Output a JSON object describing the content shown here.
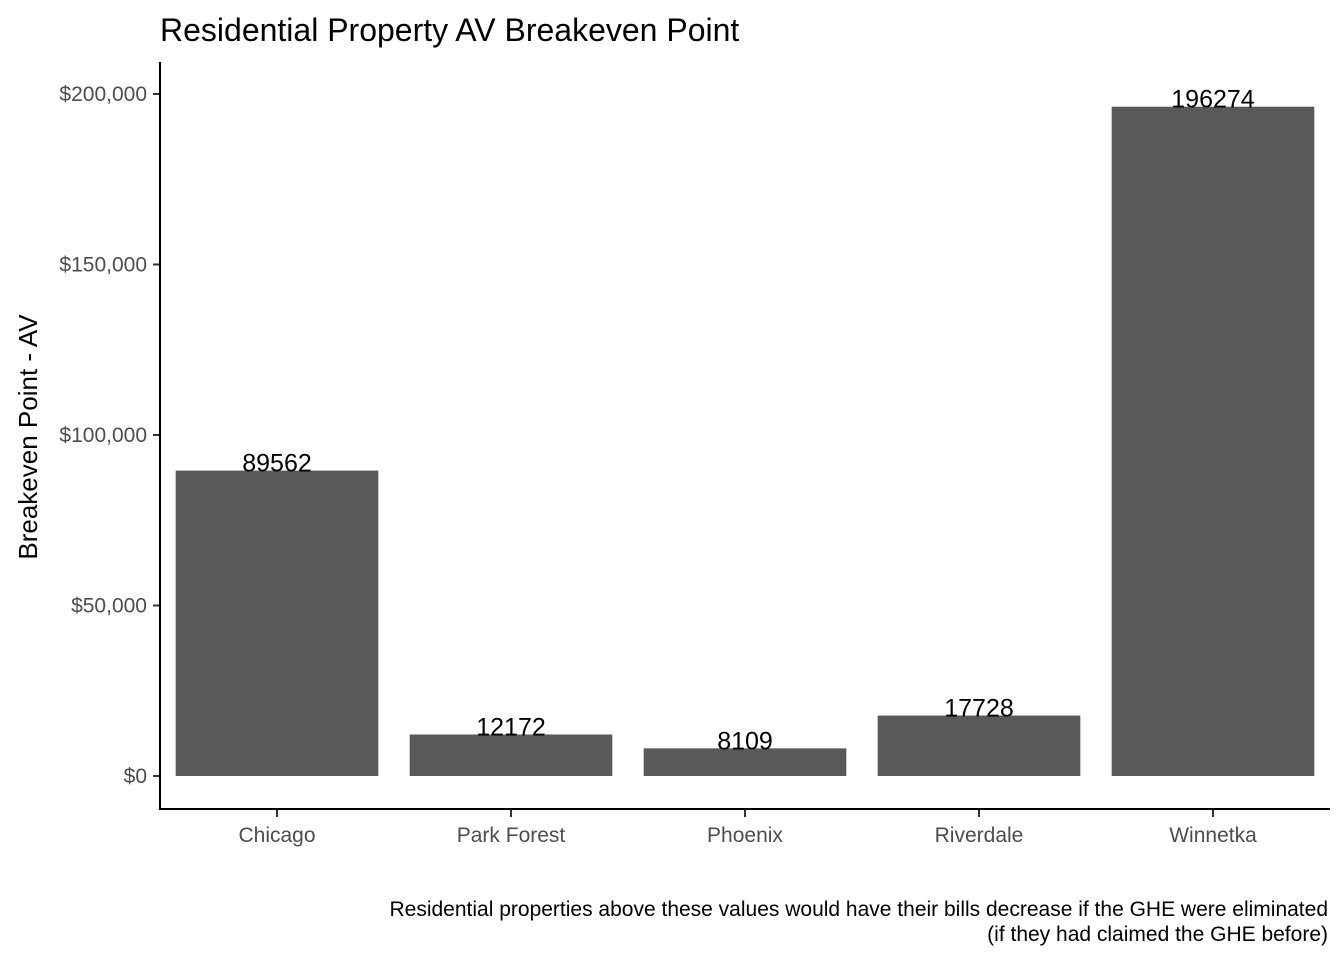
{
  "chart_data": {
    "type": "bar",
    "title": "Residential Property AV Breakeven Point",
    "xlabel": "",
    "ylabel": "Breakeven Point - AV",
    "categories": [
      "Chicago",
      "Park Forest",
      "Phoenix",
      "Riverdale",
      "Winnetka"
    ],
    "values": [
      89562,
      12172,
      8109,
      17728,
      196274
    ],
    "data_labels": [
      "89562",
      "12172",
      "8109",
      "17728",
      "196274"
    ],
    "ylim": [
      -10000,
      210000
    ],
    "yticks": [
      0,
      50000,
      100000,
      150000,
      200000
    ],
    "ytick_labels": [
      "$0",
      "$50,000",
      "$100,000",
      "$150,000",
      "$200,000"
    ],
    "bar_color": "#595959",
    "grid": false,
    "legend": "none",
    "caption_lines": [
      "Residential properties above these values would have their bills decrease if the GHE were eliminated",
      "(if they had claimed the GHE before)"
    ]
  }
}
